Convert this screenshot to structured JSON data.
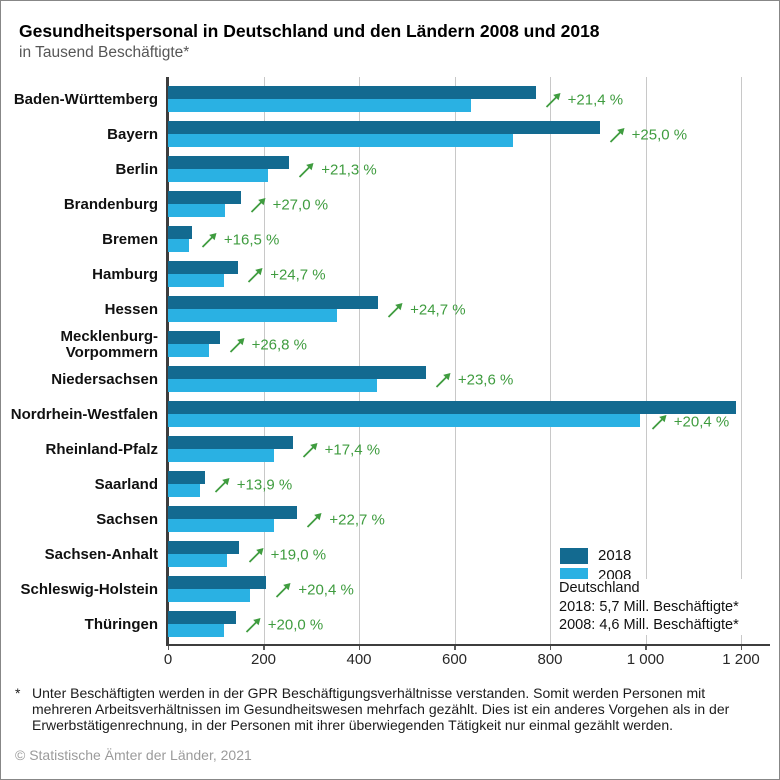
{
  "header": {
    "title": "Gesundheitspersonal in Deutschland und den Ländern 2008 und 2018",
    "subtitle": "in Tausend Beschäftigte*"
  },
  "chart_data": {
    "type": "bar",
    "orientation": "horizontal",
    "title": "Gesundheitspersonal in Deutschland und den Ländern 2008 und 2018",
    "unit": "Tausend Beschäftigte",
    "xlim": [
      0,
      1200
    ],
    "grid": true,
    "x_tick_values": [
      0,
      200,
      400,
      600,
      800,
      1000,
      1200
    ],
    "x_tick_labels": [
      "0",
      "200",
      "400",
      "600",
      "800",
      "1 000",
      "1 200"
    ],
    "categories": [
      "Baden-Württemberg",
      "Bayern",
      "Berlin",
      "Brandenburg",
      "Bremen",
      "Hamburg",
      "Hessen",
      "Mecklenburg-\nVorpommern",
      "Niedersachsen",
      "Nordrhein-Westfalen",
      "Rheinland-Pfalz",
      "Saarland",
      "Sachsen",
      "Sachsen-Anhalt",
      "Schleswig-Holstein",
      "Thüringen"
    ],
    "series": [
      {
        "name": "2018",
        "color": "#136a90",
        "values": [
          770,
          904,
          254,
          152,
          50,
          147,
          440,
          108,
          540,
          1190,
          261,
          77,
          271,
          148,
          206,
          142
        ]
      },
      {
        "name": "2008",
        "color": "#2ab1e3",
        "values": [
          634,
          723,
          210,
          119,
          43,
          118,
          353,
          86,
          437,
          988,
          222,
          68,
          221,
          124,
          171,
          118
        ]
      }
    ],
    "change_labels": [
      "+21,4 %",
      "+25,0 %",
      "+21,3 %",
      "+27,0 %",
      "+16,5 %",
      "+24,7 %",
      "+24,7 %",
      "+26,8 %",
      "+23,6 %",
      "+20,4 %",
      "+17,4 %",
      "+13,9 %",
      "+22,7 %",
      "+19,0 %",
      "+20,4 %",
      "+20,0 %"
    ],
    "legend_position": "bottom-right"
  },
  "legend": {
    "items": [
      {
        "label": "2018",
        "color": "#136a90"
      },
      {
        "label": "2008",
        "color": "#2ab1e3"
      }
    ],
    "annotation": {
      "title": "Deutschland",
      "lines": [
        "2018: 5,7 Mill. Beschäftigte*",
        "2008: 4,6 Mill. Beschäftigte*"
      ]
    }
  },
  "footnote": {
    "marker": "*",
    "lines": [
      "Unter Beschäftigten werden in der GPR Beschäftigungsverhältnisse verstanden. Somit werden Personen mit",
      "mehreren Arbeitsverhältnissen im Gesundheitswesen mehrfach gezählt. Dies ist ein anderes Vorgehen als in der",
      "Erwerbstätigenrechnung, in der Personen mit ihrer überwiegenden Tätigkeit nur einmal gezählt werden."
    ]
  },
  "copyright": "© Statistische Ämter der Länder, 2021",
  "colors": {
    "bar_2018": "#136a90",
    "bar_2008": "#2ab1e3",
    "growth_green": "#3f9c3f",
    "gridline": "#c8c8c8",
    "axis": "#3d3d3d"
  }
}
